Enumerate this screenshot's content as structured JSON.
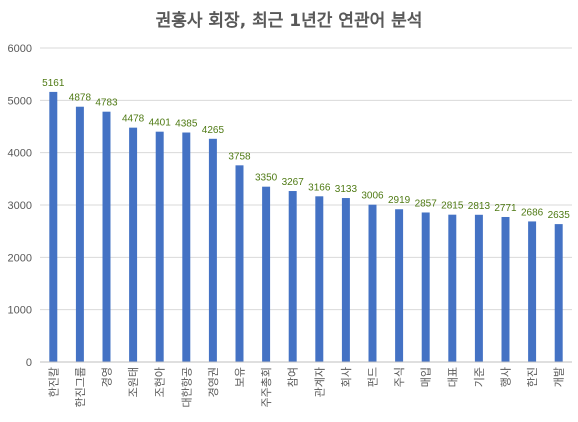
{
  "chart_data": {
    "type": "bar",
    "title": "권홍사 회장, 최근 1년간 연관어 분석",
    "xlabel": "",
    "ylabel": "",
    "ylim": [
      0,
      6000
    ],
    "yticks": [
      "0",
      "1000",
      "2000",
      "3000",
      "4000",
      "5000",
      "6000"
    ],
    "grid": true,
    "legend": "none",
    "bar_color": "#4472c4",
    "label_color": "#4f7a14",
    "categories": [
      "한진칼",
      "한진그룹",
      "경영",
      "조원태",
      "조현아",
      "대한항공",
      "경영권",
      "보유",
      "주주총회",
      "참여",
      "관계자",
      "회사",
      "펀드",
      "주식",
      "매입",
      "대표",
      "기준",
      "행사",
      "한진",
      "개발"
    ],
    "values": [
      5161,
      4878,
      4783,
      4478,
      4401,
      4385,
      4265,
      3758,
      3350,
      3267,
      3166,
      3133,
      3006,
      2919,
      2857,
      2815,
      2813,
      2771,
      2686,
      2635
    ]
  }
}
